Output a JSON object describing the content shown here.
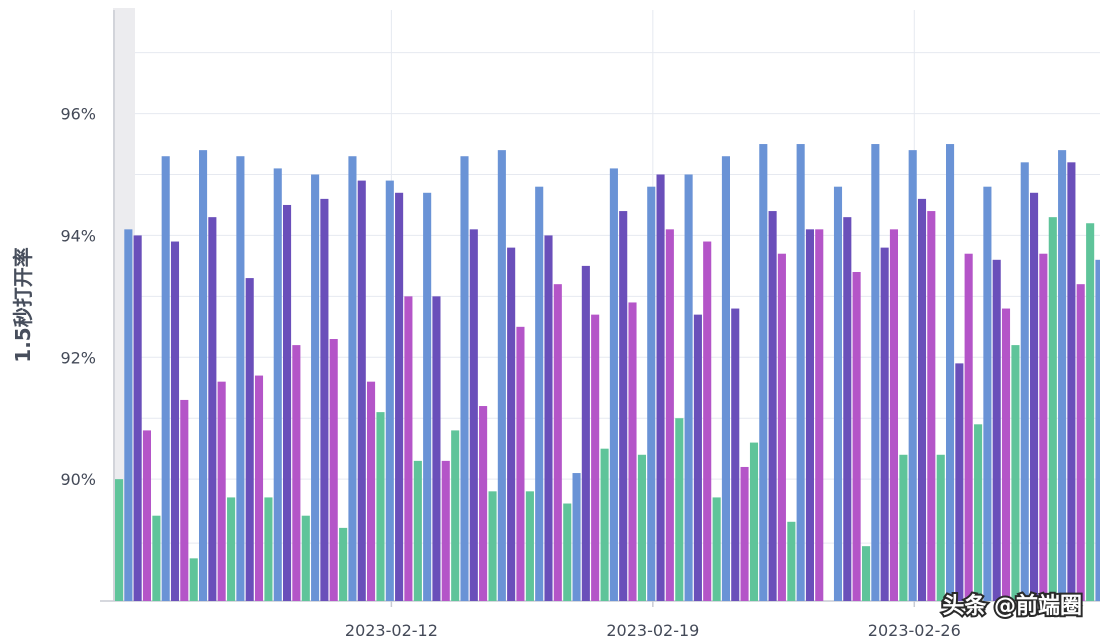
{
  "chart_data": {
    "type": "bar",
    "ylabel": "1.5秒打开率",
    "ylim": [
      88,
      97.7
    ],
    "y_ticks": [
      "90%",
      "92%",
      "94%",
      "96%"
    ],
    "y_tick_values": [
      90,
      92,
      94,
      96
    ],
    "x_tick_labels": [
      {
        "label": "2023-02-12",
        "group_index": 7.4
      },
      {
        "label": "2023-02-19",
        "group_index": 14.4
      },
      {
        "label": "2023-02-26",
        "group_index": 21.4
      }
    ],
    "grid": true,
    "legend": "none",
    "series": [
      {
        "color": "#5fc49a",
        "values": [
          90.0,
          89.4,
          88.7,
          89.7,
          89.7,
          89.4,
          89.2,
          91.1,
          90.3,
          90.8,
          89.8,
          89.8,
          89.6,
          90.5,
          90.4,
          91.0,
          89.7,
          90.6,
          89.3,
          null,
          88.9,
          90.4,
          90.4,
          90.9,
          92.2,
          94.3,
          94.2
        ]
      },
      {
        "color": "#6a93d6",
        "values": [
          94.1,
          95.3,
          95.4,
          95.3,
          95.1,
          95.0,
          95.3,
          94.9,
          94.7,
          95.3,
          95.4,
          94.8,
          90.1,
          95.1,
          94.8,
          95.0,
          95.3,
          95.5,
          95.5,
          94.8,
          95.5,
          95.4,
          95.5,
          94.8,
          95.2,
          95.4,
          93.6
        ]
      },
      {
        "color": "#6a4fba",
        "values": [
          94.0,
          93.9,
          94.3,
          93.3,
          94.5,
          94.6,
          94.9,
          94.7,
          93.0,
          94.1,
          93.8,
          94.0,
          93.5,
          94.4,
          95.0,
          92.7,
          92.8,
          94.4,
          94.1,
          94.3,
          93.8,
          94.6,
          91.9,
          93.6,
          94.7,
          95.2,
          null
        ]
      },
      {
        "color": "#b455c8",
        "values": [
          90.8,
          91.3,
          91.6,
          91.7,
          92.2,
          92.3,
          91.6,
          93.0,
          90.3,
          91.2,
          92.5,
          93.2,
          92.7,
          92.9,
          94.1,
          93.9,
          90.2,
          93.7,
          94.1,
          93.4,
          94.1,
          94.4,
          93.7,
          92.8,
          93.7,
          93.2,
          null
        ]
      }
    ]
  },
  "watermark": {
    "text": "头条 @前端圈"
  }
}
